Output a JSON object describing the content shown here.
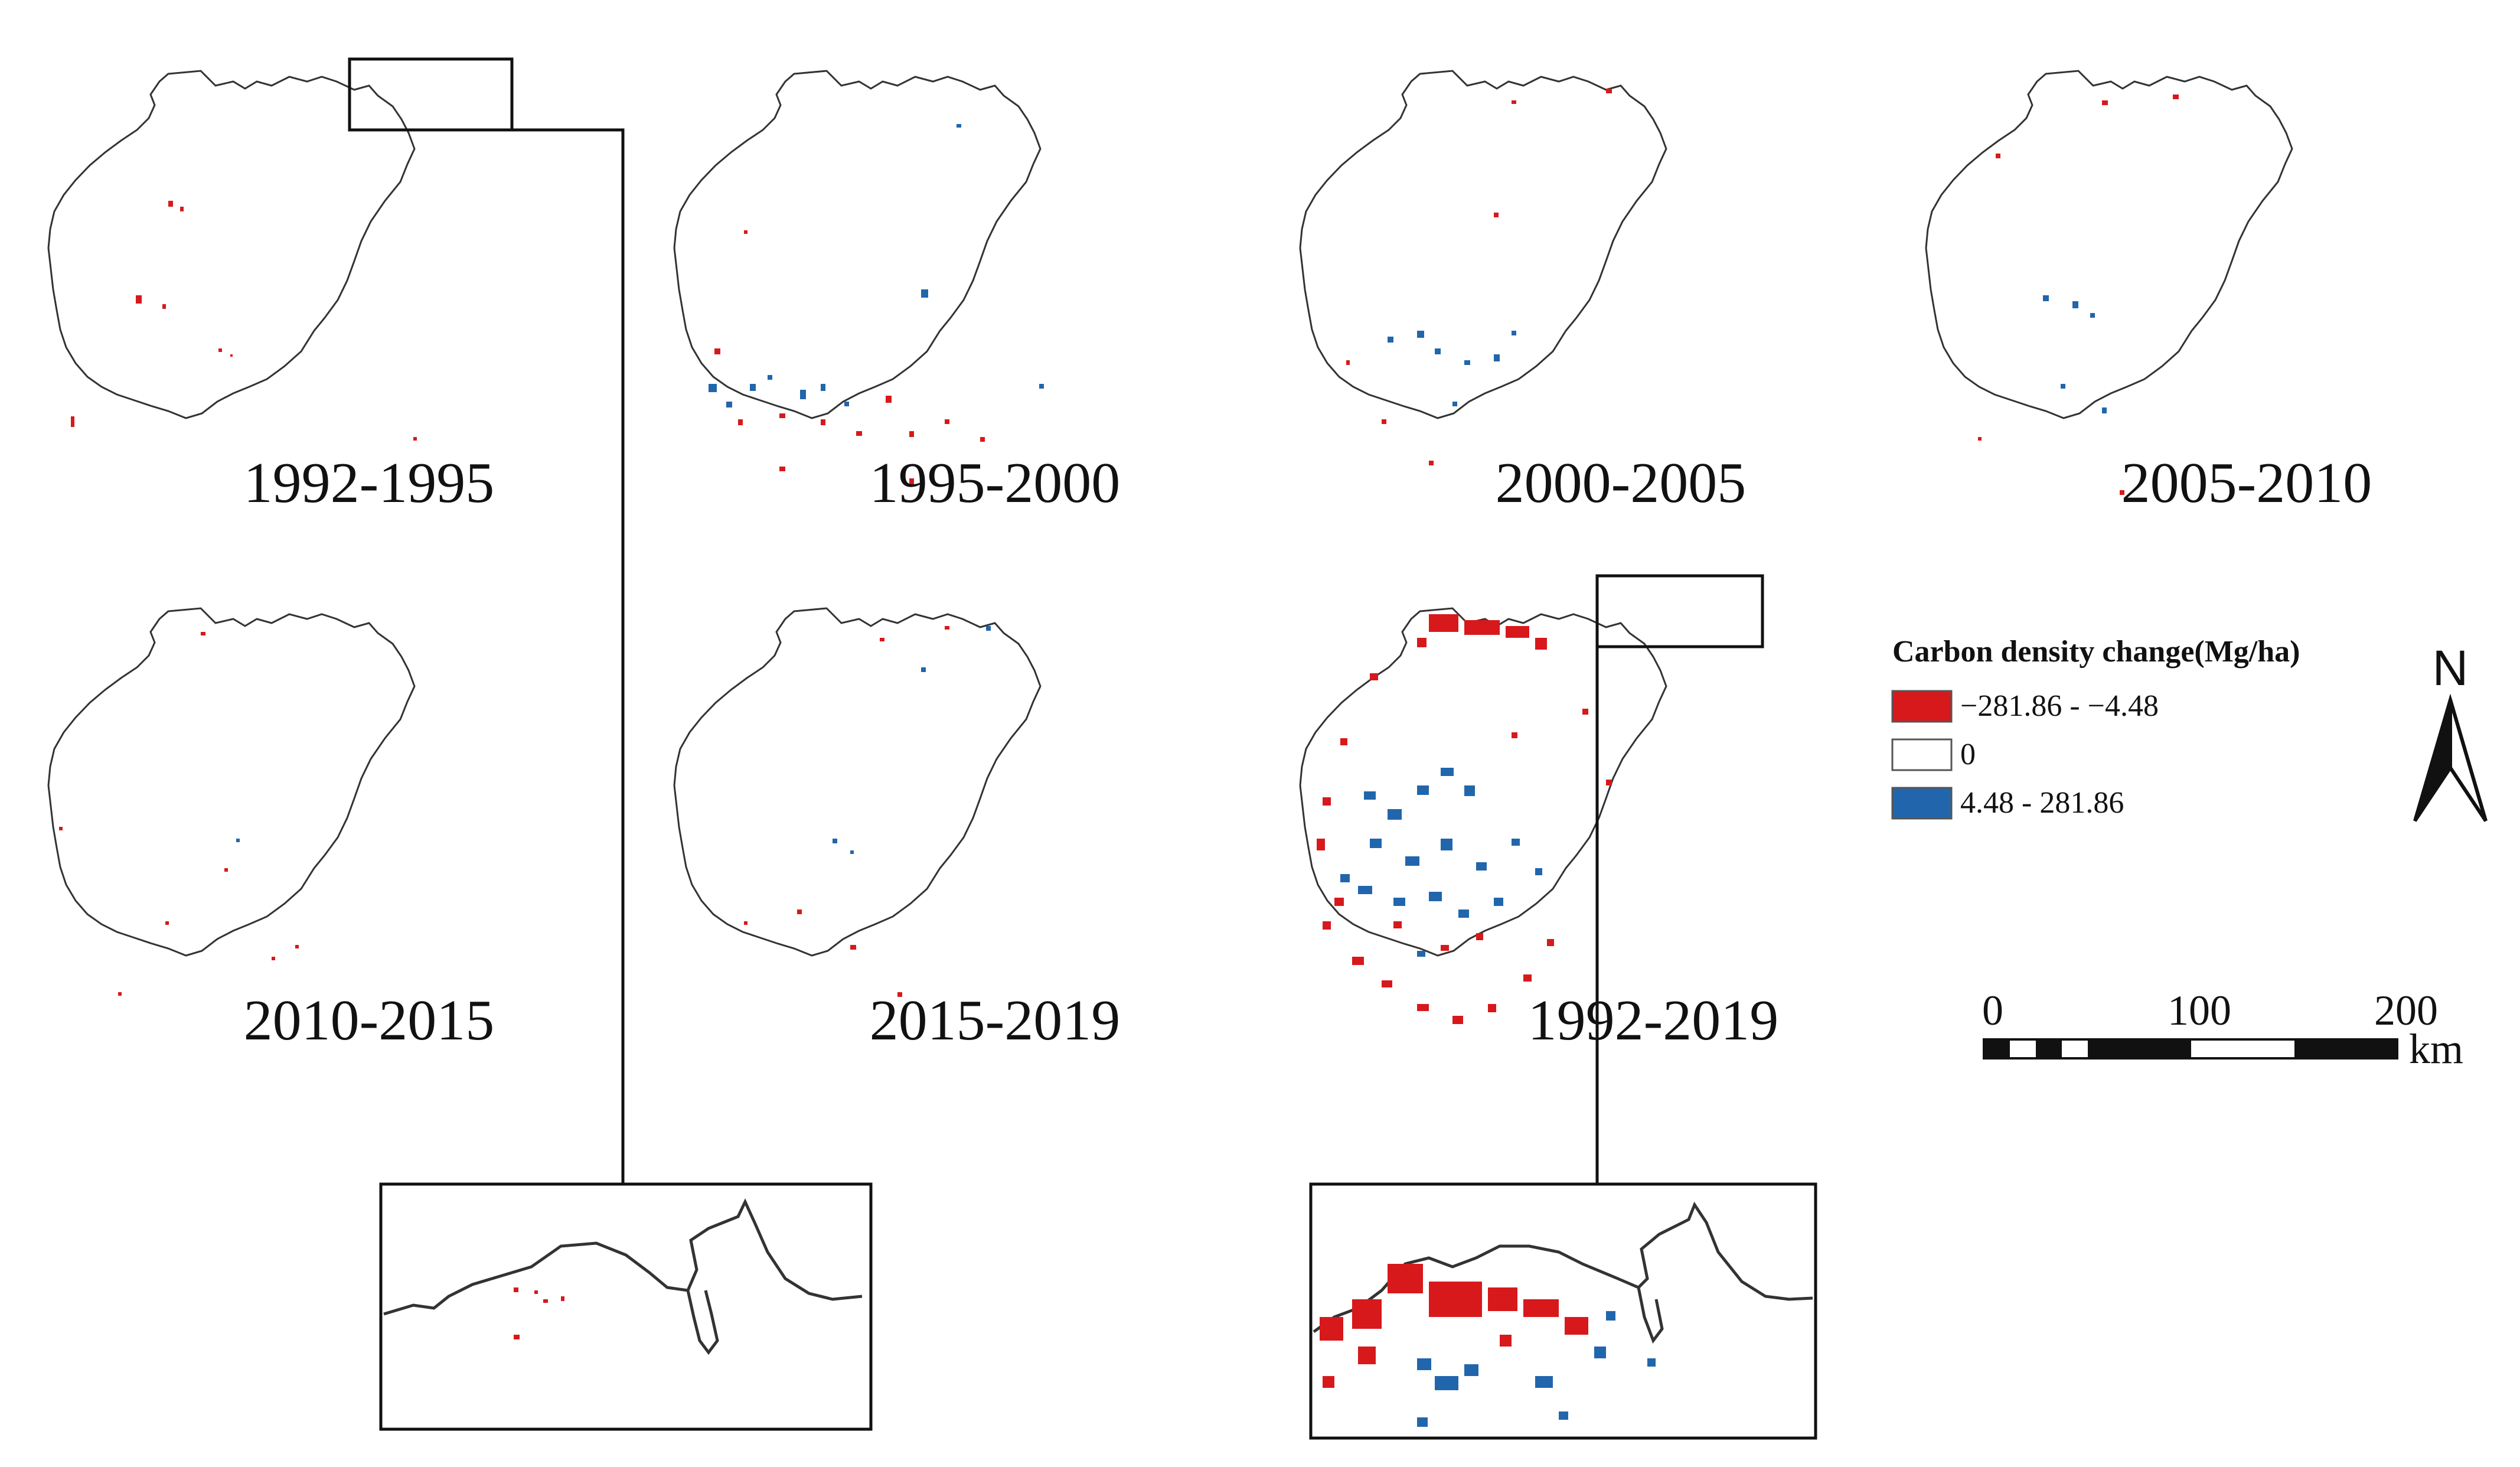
{
  "panels": [
    {
      "id": "p1",
      "label": "1992-1995"
    },
    {
      "id": "p2",
      "label": "1995-2000"
    },
    {
      "id": "p3",
      "label": "2000-2005"
    },
    {
      "id": "p4",
      "label": "2005-2010"
    },
    {
      "id": "p5",
      "label": "2010-2015"
    },
    {
      "id": "p6",
      "label": "2015-2019"
    },
    {
      "id": "p7",
      "label": "1992-2019"
    }
  ],
  "legend": {
    "title": "Carbon density change(Mg/ha)",
    "classes": [
      {
        "label": "−281.86 - −4.48",
        "color": "#d7191c"
      },
      {
        "label": "0",
        "color": "#ffffff"
      },
      {
        "label": "4.48 - 281.86",
        "color": "#2166ac"
      }
    ]
  },
  "north_arrow": {
    "label": "N"
  },
  "scale_bar": {
    "ticks": [
      "0",
      "100",
      "200"
    ],
    "unit": "km"
  },
  "colors": {
    "loss": "#d7191c",
    "gain": "#2166ac",
    "outline": "#333333"
  }
}
